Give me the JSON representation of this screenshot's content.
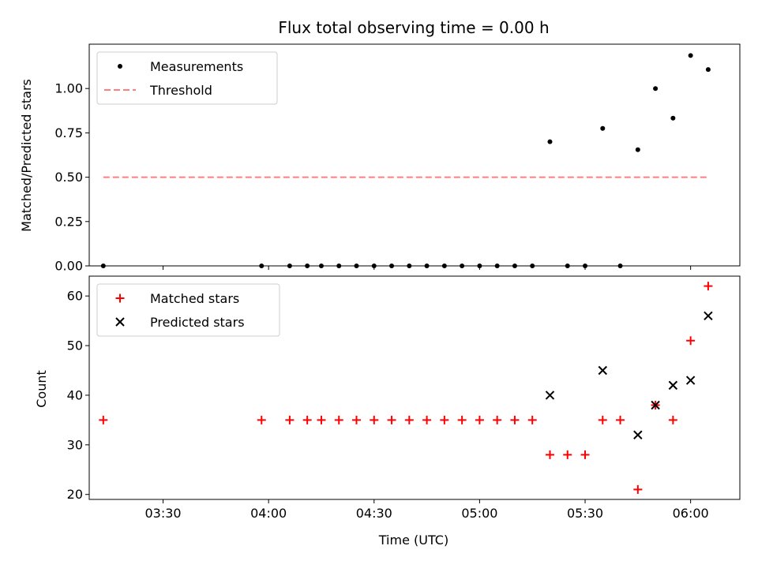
{
  "chart_data": [
    {
      "type": "scatter",
      "title": "Flux total observing time = 0.00 h",
      "xlabel": "",
      "ylabel": "Matched/Predicted stars",
      "x_range": [
        "03:09",
        "06:14"
      ],
      "ylim": [
        0.0,
        1.25
      ],
      "yticks": [
        "0.00",
        "0.25",
        "0.50",
        "0.75",
        "1.00"
      ],
      "xticks": [
        "03:30",
        "04:00",
        "04:30",
        "05:00",
        "05:30",
        "06:00"
      ],
      "legend_position": "top-left",
      "grid": false,
      "series": [
        {
          "name": "Measurements",
          "marker": "dot",
          "color": "#000000",
          "x": [
            "03:13",
            "03:58",
            "04:06",
            "04:11",
            "04:15",
            "04:20",
            "04:25",
            "04:30",
            "04:35",
            "04:40",
            "04:45",
            "04:50",
            "04:55",
            "05:00",
            "05:05",
            "05:10",
            "05:15",
            "05:20",
            "05:25",
            "05:30",
            "05:35",
            "05:40",
            "05:45",
            "05:50",
            "05:55",
            "06:00",
            "06:05"
          ],
          "y": [
            0.0,
            0.0,
            0.0,
            0.0,
            0.0,
            0.0,
            0.0,
            0.0,
            0.0,
            0.0,
            0.0,
            0.0,
            0.0,
            0.0,
            0.0,
            0.0,
            0.0,
            0.7,
            0.0,
            0.0,
            0.775,
            0.0,
            0.655,
            1.0,
            0.833,
            1.186,
            1.107
          ]
        },
        {
          "name": "Threshold",
          "style": "dashed",
          "color": "#ff7f7f",
          "x": [
            "03:13",
            "06:05"
          ],
          "y": [
            0.5,
            0.5
          ]
        }
      ]
    },
    {
      "type": "scatter",
      "title": "",
      "xlabel": "Time (UTC)",
      "ylabel": "Count",
      "x_range": [
        "03:09",
        "06:14"
      ],
      "ylim": [
        19,
        64
      ],
      "yticks": [
        "20",
        "30",
        "40",
        "50",
        "60"
      ],
      "xticks": [
        "03:30",
        "04:00",
        "04:30",
        "05:00",
        "05:30",
        "06:00"
      ],
      "legend_position": "top-left",
      "grid": false,
      "series": [
        {
          "name": "Matched stars",
          "marker": "plus",
          "color": "#ff0000",
          "x": [
            "03:13",
            "03:58",
            "04:06",
            "04:11",
            "04:15",
            "04:20",
            "04:25",
            "04:30",
            "04:35",
            "04:40",
            "04:45",
            "04:50",
            "04:55",
            "05:00",
            "05:05",
            "05:10",
            "05:15",
            "05:20",
            "05:25",
            "05:30",
            "05:35",
            "05:40",
            "05:45",
            "05:50",
            "05:55",
            "06:00",
            "06:05"
          ],
          "y": [
            35,
            35,
            35,
            35,
            35,
            35,
            35,
            35,
            35,
            35,
            35,
            35,
            35,
            35,
            35,
            35,
            35,
            28,
            28,
            28,
            35,
            35,
            21,
            38,
            35,
            51,
            62
          ]
        },
        {
          "name": "Predicted stars",
          "marker": "x",
          "color": "#000000",
          "x": [
            "05:20",
            "05:35",
            "05:45",
            "05:50",
            "05:55",
            "06:00",
            "06:05"
          ],
          "y": [
            40,
            45,
            32,
            38,
            42,
            43,
            56
          ]
        }
      ]
    }
  ]
}
